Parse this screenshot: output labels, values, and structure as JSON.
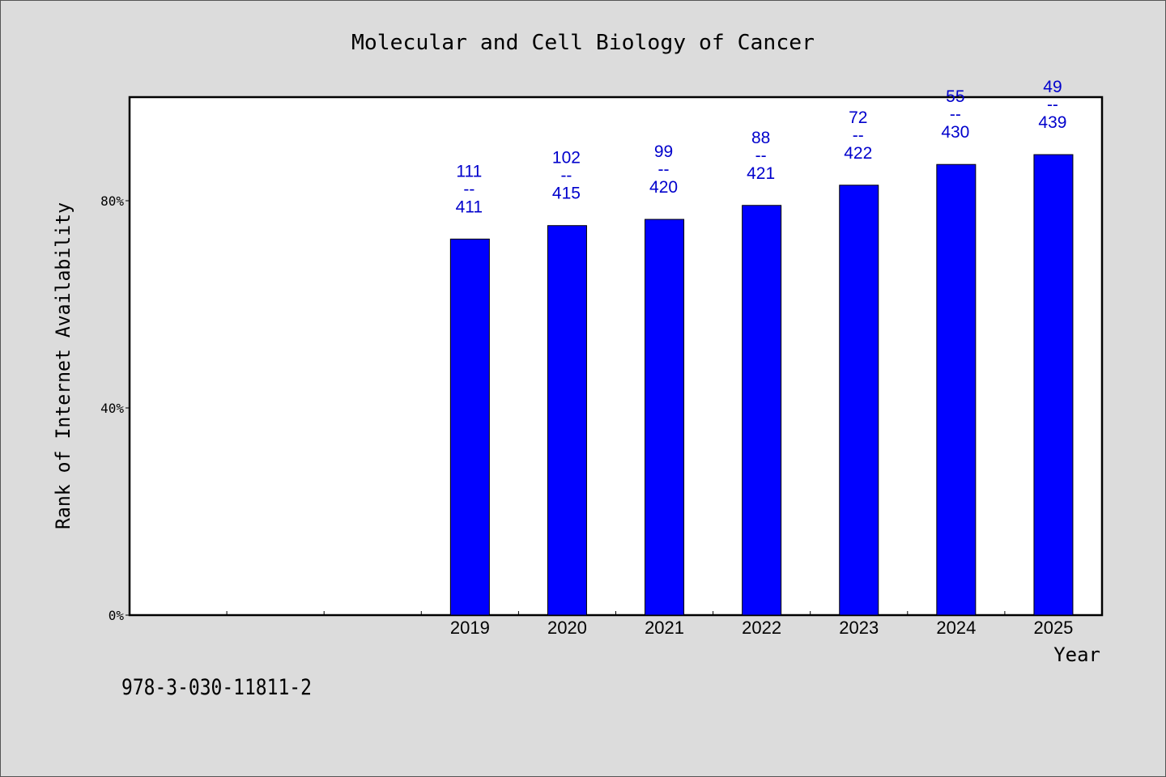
{
  "chart_data": {
    "type": "bar",
    "title": "Molecular and Cell Biology of Cancer",
    "xlabel": "Year",
    "ylabel": "Rank of Internet Availability",
    "categories": [
      "",
      "",
      "",
      "2019",
      "2020",
      "2021",
      "2022",
      "2023",
      "2024",
      "2025"
    ],
    "values": [
      null,
      null,
      null,
      72.6,
      75.2,
      76.4,
      79.1,
      83.0,
      87.0,
      88.9
    ],
    "bar_labels": [
      null,
      null,
      null,
      [
        "111",
        "--",
        "411"
      ],
      [
        "102",
        "--",
        "415"
      ],
      [
        "99",
        "--",
        "420"
      ],
      [
        "88",
        "--",
        "421"
      ],
      [
        "72",
        "--",
        "422"
      ],
      [
        "55",
        "--",
        "430"
      ],
      [
        "49",
        "--",
        "439"
      ]
    ],
    "ylim": [
      0,
      100
    ],
    "yticks": [
      0,
      40,
      80
    ],
    "ytick_labels": [
      "0%",
      "40%",
      "80%"
    ],
    "grid": false,
    "legend": "none",
    "colors": {
      "bar": "#0000ff",
      "label": "#0000cc",
      "plot_bg": "#ffffff",
      "page_bg": "#dcdcdc"
    }
  },
  "footer": {
    "isbn": "978-3-030-11811-2"
  }
}
